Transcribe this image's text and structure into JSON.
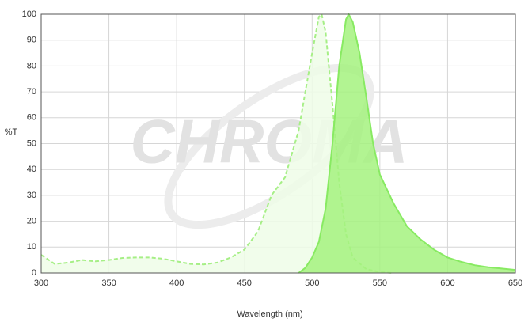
{
  "chart_data": {
    "type": "line",
    "watermark": "CHROMA",
    "x_label": "Wavelength (nm)",
    "y_label": "%T",
    "xlim": [
      300,
      650
    ],
    "ylim": [
      0,
      100
    ],
    "xticks": [
      300,
      350,
      400,
      450,
      500,
      550,
      600,
      650
    ],
    "yticks": [
      0,
      10,
      20,
      30,
      40,
      50,
      60,
      70,
      80,
      90,
      100
    ],
    "grid": true,
    "series": [
      {
        "color": "#a6ef86",
        "fill": "#effde8",
        "dashed": true,
        "x": [
          300,
          310,
          320,
          330,
          340,
          350,
          360,
          370,
          380,
          390,
          400,
          410,
          420,
          430,
          440,
          450,
          460,
          470,
          480,
          490,
          495,
          500,
          505,
          507,
          510,
          515,
          520,
          525,
          530,
          540,
          550,
          560
        ],
        "values": [
          7,
          3.5,
          4,
          5,
          4.5,
          5,
          5.8,
          6,
          6,
          5.5,
          4.5,
          3.5,
          3.3,
          4,
          6,
          9,
          16,
          30,
          37,
          55,
          70,
          85,
          99,
          100,
          93,
          65,
          35,
          15,
          6,
          1.5,
          0.3,
          0
        ]
      },
      {
        "color": "#88ea62",
        "fill": "#a4f27f",
        "dashed": false,
        "x": [
          490,
          495,
          500,
          505,
          510,
          515,
          520,
          525,
          527,
          530,
          535,
          540,
          545,
          550,
          560,
          570,
          580,
          590,
          600,
          610,
          620,
          630,
          640,
          650
        ],
        "values": [
          0,
          2,
          6,
          12,
          25,
          50,
          80,
          98,
          100,
          97,
          85,
          68,
          50,
          38,
          27,
          18,
          13,
          9,
          6,
          4.3,
          3,
          2.2,
          1.7,
          1.2
        ]
      }
    ]
  }
}
